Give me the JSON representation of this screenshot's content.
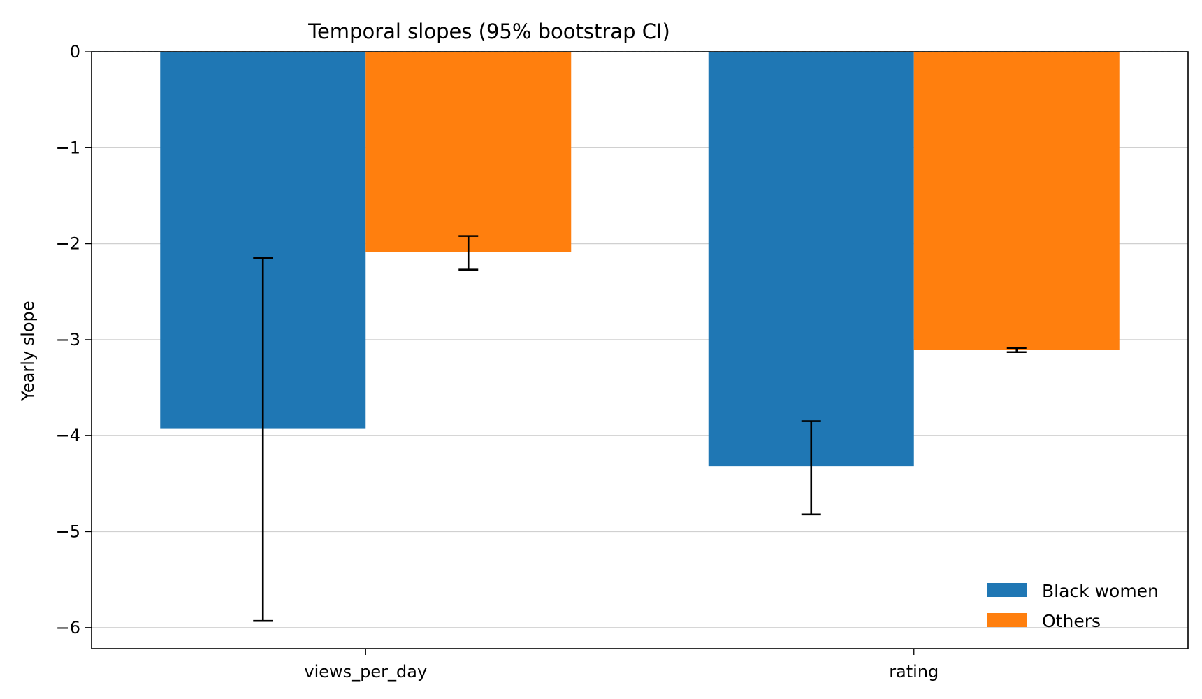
{
  "chart_data": {
    "type": "bar",
    "title": "Temporal slopes (95% bootstrap CI)",
    "xlabel": "",
    "ylabel": "Yearly slope",
    "categories": [
      "views_per_day",
      "rating"
    ],
    "ylim": [
      -6.22,
      0
    ],
    "yticks": [
      0,
      -1,
      -2,
      -3,
      -4,
      -5,
      -6
    ],
    "ytick_labels": [
      "0",
      "−1",
      "−2",
      "−3",
      "−4",
      "−5",
      "−6"
    ],
    "grid": "horizontal",
    "reference_line": 0,
    "legend_position": "lower-right",
    "series": [
      {
        "name": "Black women",
        "color": "#1f77b4",
        "values": [
          -3.93,
          -4.32
        ],
        "ci_low": [
          -5.93,
          -4.82
        ],
        "ci_high": [
          -2.15,
          -3.85
        ]
      },
      {
        "name": "Others",
        "color": "#ff7f0e",
        "values": [
          -2.09,
          -3.11
        ],
        "ci_low": [
          -2.27,
          -3.13
        ],
        "ci_high": [
          -1.92,
          -3.09
        ]
      }
    ]
  }
}
